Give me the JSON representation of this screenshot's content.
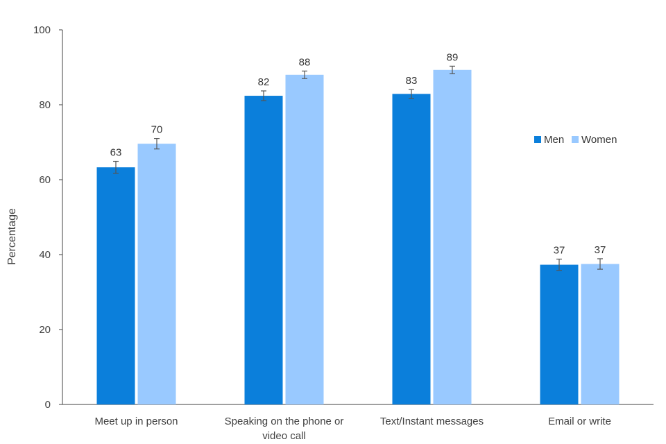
{
  "chart_data": {
    "type": "bar",
    "title": "",
    "xlabel": "",
    "ylabel": "Percentage",
    "ylim": [
      0,
      100
    ],
    "yticks": [
      0,
      20,
      40,
      60,
      80,
      100
    ],
    "grid": false,
    "legend_position": "right",
    "categories": [
      [
        "Meet up in person"
      ],
      [
        "Speaking on the phone or",
        "video call"
      ],
      [
        "Text/Instant messages"
      ],
      [
        "Email or write"
      ]
    ],
    "series": [
      {
        "name": "Men",
        "color": "#0b7fdb",
        "values": [
          63.3,
          82.4,
          82.9,
          37.3
        ],
        "labels": [
          "63",
          "82",
          "83",
          "37"
        ],
        "error_low": [
          61.7,
          81.1,
          81.7,
          35.8
        ],
        "error_high": [
          64.9,
          83.7,
          84.1,
          38.8
        ]
      },
      {
        "name": "Women",
        "color": "#99c9ff",
        "values": [
          69.6,
          88.0,
          89.3,
          37.5
        ],
        "labels": [
          "70",
          "88",
          "89",
          "37"
        ],
        "error_low": [
          68.2,
          87.0,
          88.3,
          36.1
        ],
        "error_high": [
          71.0,
          89.0,
          90.3,
          38.9
        ]
      }
    ]
  }
}
